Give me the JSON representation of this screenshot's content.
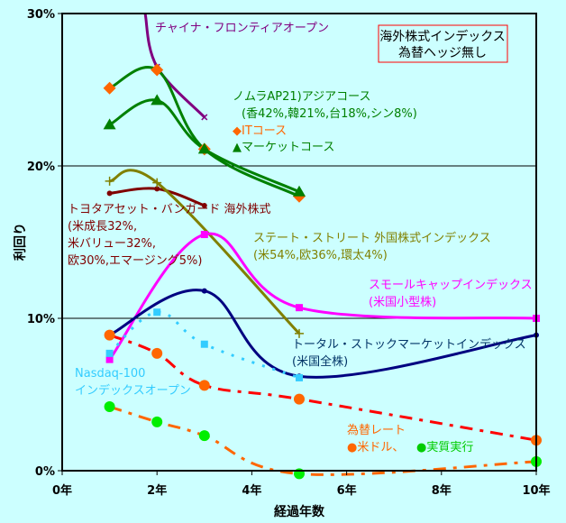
{
  "chart_data": {
    "type": "line",
    "title": "海外株式インデックス 為替ヘッジ無し",
    "title_lines": [
      "海外株式インデックス",
      "為替ヘッジ無し"
    ],
    "xlabel": "経過年数",
    "ylabel": "利回り",
    "xlim": [
      0,
      10
    ],
    "ylim": [
      0,
      30
    ],
    "x_ticks": [
      0,
      2,
      4,
      6,
      8,
      10
    ],
    "x_tick_labels": [
      "0年",
      "2年",
      "4年",
      "6年",
      "8年",
      "10年"
    ],
    "y_ticks": [
      0,
      10,
      20,
      30
    ],
    "y_tick_labels": [
      "0%",
      "10%",
      "20%",
      "30%"
    ],
    "grid": "horizontal",
    "legend": "title-box top-right",
    "series": [
      {
        "name": "チャイナ・フロンティアオープン",
        "color": "#800080",
        "marker": "x",
        "dash": "solid",
        "x": [
          1.75,
          2,
          3
        ],
        "y": [
          30,
          26.5,
          23.2
        ]
      },
      {
        "name": "ノムラAP21 ITコース",
        "color": "#008000",
        "marker": "diamond",
        "marker_color": "#ff6600",
        "dash": "solid",
        "x": [
          1,
          2,
          3,
          5
        ],
        "y": [
          25.1,
          26.3,
          21.1,
          18.0
        ]
      },
      {
        "name": "ノムラAP21 マーケットコース",
        "color": "#008000",
        "marker": "triangle",
        "marker_color": "#008000",
        "dash": "solid",
        "x": [
          1,
          2,
          3,
          5
        ],
        "y": [
          22.7,
          24.3,
          21.1,
          18.3
        ]
      },
      {
        "name": "トヨタアセット・バンガード海外株式",
        "color": "#800000",
        "marker": "dot",
        "dash": "solid",
        "x": [
          1,
          2,
          3
        ],
        "y": [
          18.2,
          18.5,
          17.4
        ]
      },
      {
        "name": "ステート・ストリート 外国株式インデックス",
        "color": "#808000",
        "marker": "plus",
        "dash": "solid",
        "x": [
          1,
          2,
          5
        ],
        "y": [
          19.0,
          18.9,
          9.0
        ]
      },
      {
        "name": "スモールキャップインデックス(米国小型株)",
        "color": "#ff00ff",
        "marker": "square",
        "dash": "solid",
        "x": [
          1,
          3,
          5,
          10
        ],
        "y": [
          7.3,
          15.5,
          10.7,
          10.0
        ]
      },
      {
        "name": "トータル・ストックマーケットインデックス(米国全株)",
        "color": "#000080",
        "marker": "dot",
        "dash": "solid",
        "x": [
          1,
          3,
          5,
          10
        ],
        "y": [
          8.9,
          11.8,
          6.2,
          8.9
        ]
      },
      {
        "name": "Nasdaq-100インデックスオープン",
        "color": "#33ccff",
        "marker": "square",
        "dash": "dotted",
        "x": [
          1,
          2,
          3,
          5
        ],
        "y": [
          7.7,
          10.4,
          8.3,
          6.1
        ]
      },
      {
        "name": "為替レート 米ドル",
        "color": "#ff0000",
        "marker": "circle",
        "marker_color": "#ff6600",
        "dash": "dashdot",
        "x": [
          1,
          2,
          3,
          5,
          10
        ],
        "y": [
          8.9,
          7.7,
          5.6,
          4.7,
          2.0
        ]
      },
      {
        "name": "為替レート 実質実行",
        "color": "#ff6600",
        "marker": "circle",
        "marker_color": "#00ee00",
        "dash": "dashdot",
        "x": [
          1,
          2,
          3,
          5,
          10
        ],
        "y": [
          4.2,
          3.2,
          2.3,
          -0.2,
          0.6
        ]
      }
    ],
    "annotations": [
      {
        "id": "china",
        "lines": [
          "チャイナ・フロンティアオープン"
        ],
        "color": "#800080"
      },
      {
        "id": "nomura",
        "lines": [
          "ノムラAP21)アジアコース",
          "(香42%,韓21%,台18%,シン8%)"
        ],
        "color": "#008000"
      },
      {
        "id": "it",
        "lines": [
          "◆ITコース"
        ],
        "color": "#ff6600"
      },
      {
        "id": "market",
        "lines": [
          "▲マーケットコース"
        ],
        "color": "#008000"
      },
      {
        "id": "toyota",
        "lines": [
          "トヨタアセット・バンガード 海外株式",
          "(米成長32%,",
          "米バリュー32%,",
          "欧30%,エマージング5%)"
        ],
        "color": "#800000"
      },
      {
        "id": "state",
        "lines": [
          "ステート・ストリート 外国株式インデックス",
          "(米54%,欧36%,環太4%)"
        ],
        "color": "#808000"
      },
      {
        "id": "smallcap",
        "lines": [
          "スモールキャップインデックス",
          "(米国小型株)"
        ],
        "color": "#ff00ff"
      },
      {
        "id": "total",
        "lines": [
          "トータル・ストックマーケットインデックス",
          "(米国全株)"
        ],
        "color": "#003366"
      },
      {
        "id": "nasdaq",
        "lines": [
          "Nasdaq-100",
          "インデックスオープン"
        ],
        "color": "#33ccff"
      },
      {
        "id": "fx",
        "lines": [
          "為替レート"
        ],
        "color": "#ff6600"
      },
      {
        "id": "fx-usd",
        "lines": [
          "●米ドル、"
        ],
        "color": "#ff6600"
      },
      {
        "id": "fx-real",
        "lines": [
          "●実質実行"
        ],
        "color": "#00cc00"
      }
    ]
  }
}
